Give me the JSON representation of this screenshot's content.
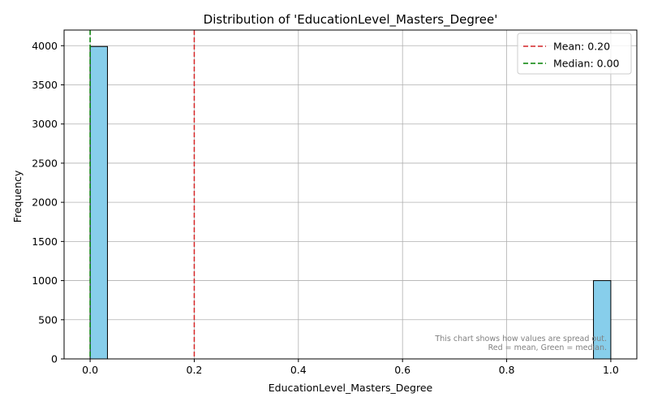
{
  "chart_data": {
    "type": "bar",
    "title": "Distribution of 'EducationLevel_Masters_Degree'",
    "xlabel": "EducationLevel_Masters_Degree",
    "ylabel": "Frequency",
    "xlim": [
      -0.05,
      1.05
    ],
    "ylim": [
      0,
      4200
    ],
    "xticks": [
      0.0,
      0.2,
      0.4,
      0.6,
      0.8,
      1.0
    ],
    "xtick_labels": [
      "0.0",
      "0.2",
      "0.4",
      "0.6",
      "0.8",
      "1.0"
    ],
    "yticks": [
      0,
      500,
      1000,
      1500,
      2000,
      2500,
      3000,
      3500,
      4000
    ],
    "ytick_labels": [
      "0",
      "500",
      "1000",
      "1500",
      "2000",
      "2500",
      "3000",
      "3500",
      "4000"
    ],
    "grid": true,
    "bins": [
      {
        "x0": 0.0,
        "x1": 0.0333,
        "count": 3990
      },
      {
        "x0": 0.9667,
        "x1": 1.0,
        "count": 1000
      }
    ],
    "reference_lines": [
      {
        "label": "Mean: 0.20",
        "x": 0.2,
        "color": "#d62728",
        "style": "dashed"
      },
      {
        "label": "Median: 0.00",
        "x": 0.0,
        "color": "#008000",
        "style": "dashed"
      }
    ],
    "legend_position": "top-right",
    "bar_color": "#87ceeb",
    "bar_edge_color": "#000000",
    "annotation_lines": [
      "This chart shows how values are spread out.",
      "Red = mean, Green = median."
    ]
  }
}
